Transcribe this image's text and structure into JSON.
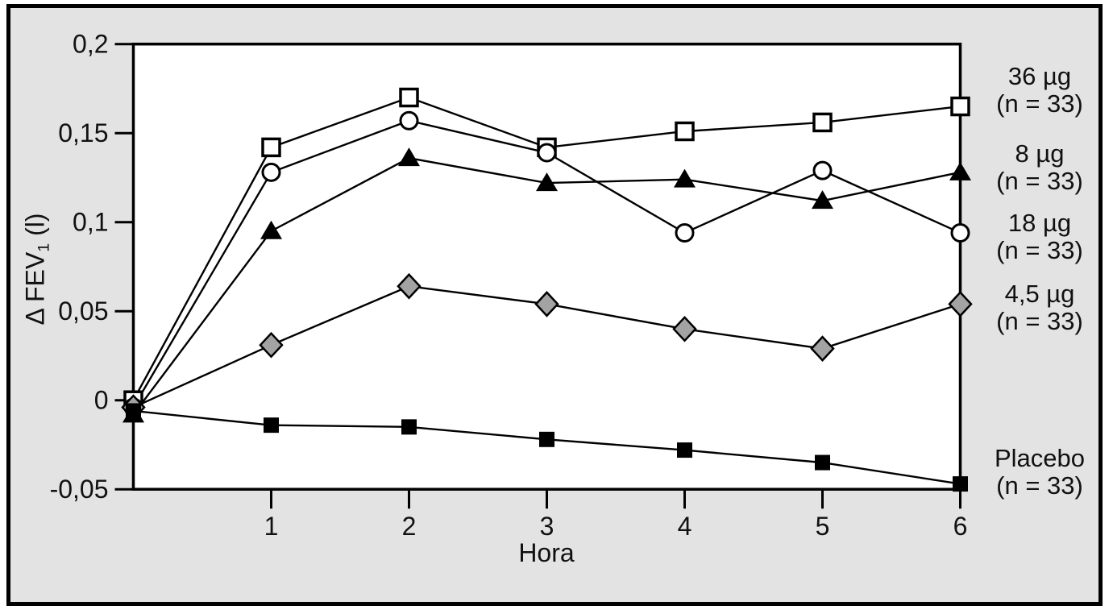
{
  "figure": {
    "background_color": "#e3e3e3",
    "frame_border_color": "#000000",
    "plot_background": "#ffffff"
  },
  "labels": {
    "x_axis": "Hora",
    "y_axis_prefix": "Δ FEV",
    "y_axis_sub": "1",
    "y_axis_suffix": " (l)"
  },
  "chart_data": {
    "type": "line",
    "title": "",
    "xlabel": "Hora",
    "ylabel": "Δ FEV₁ (l)",
    "xlim": [
      0,
      6
    ],
    "ylim": [
      -0.05,
      0.2
    ],
    "grid": false,
    "legend_position": "right-outside",
    "x": [
      0,
      1,
      2,
      3,
      4,
      5,
      6
    ],
    "x_ticks": [
      {
        "v": 1,
        "label": "1"
      },
      {
        "v": 2,
        "label": "2"
      },
      {
        "v": 3,
        "label": "3"
      },
      {
        "v": 4,
        "label": "4"
      },
      {
        "v": 5,
        "label": "5"
      },
      {
        "v": 6,
        "label": "6"
      }
    ],
    "y_ticks": [
      {
        "v": 0.2,
        "label": "0,2"
      },
      {
        "v": 0.15,
        "label": "0,15"
      },
      {
        "v": 0.1,
        "label": "0,1"
      },
      {
        "v": 0.05,
        "label": "0,05"
      },
      {
        "v": 0,
        "label": "0"
      },
      {
        "v": -0.05,
        "label": "-0,05"
      }
    ],
    "series": [
      {
        "name": "36 µg",
        "n_label": "(n = 33)",
        "marker": "open-square",
        "line_color": "#000000",
        "marker_fill": "#ffffff",
        "values": [
          0.0,
          0.142,
          0.17,
          0.142,
          0.151,
          0.156,
          0.165
        ]
      },
      {
        "name": "8 µg",
        "n_label": "(n = 33)",
        "marker": "filled-triangle",
        "line_color": "#000000",
        "marker_fill": "#000000",
        "values": [
          -0.008,
          0.095,
          0.136,
          0.122,
          0.124,
          0.112,
          0.128
        ]
      },
      {
        "name": "18 µg",
        "n_label": "(n = 33)",
        "marker": "open-circle",
        "line_color": "#000000",
        "marker_fill": "#ffffff",
        "values": [
          -0.004,
          0.128,
          0.157,
          0.139,
          0.094,
          0.129,
          0.094
        ]
      },
      {
        "name": "4,5 µg",
        "n_label": "(n = 33)",
        "marker": "gray-diamond",
        "line_color": "#000000",
        "marker_fill": "#a3a3a3",
        "values": [
          -0.004,
          0.031,
          0.064,
          0.054,
          0.04,
          0.029,
          0.054
        ]
      },
      {
        "name": "Placebo",
        "n_label": "(n = 33)",
        "marker": "filled-square",
        "line_color": "#000000",
        "marker_fill": "#000000",
        "values": [
          -0.006,
          -0.014,
          -0.015,
          -0.022,
          -0.028,
          -0.035,
          -0.047
        ]
      }
    ]
  }
}
